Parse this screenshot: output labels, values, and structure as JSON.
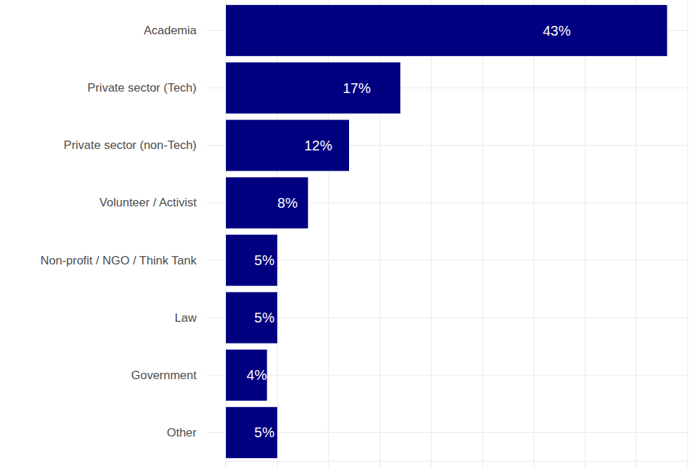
{
  "chart_data": {
    "type": "bar",
    "orientation": "horizontal",
    "categories": [
      "Academia",
      "Private sector (Tech)",
      "Private sector (non-Tech)",
      "Volunteer / Activist",
      "Non-profit / NGO / Think Tank",
      "Law",
      "Government",
      "Other"
    ],
    "values": [
      43,
      17,
      12,
      8,
      5,
      5,
      4,
      5
    ],
    "value_labels": [
      "43%",
      "17%",
      "12%",
      "8%",
      "5%",
      "5%",
      "4%",
      "5%"
    ],
    "color": "#000080",
    "xlim": [
      0,
      45
    ],
    "xticks": [
      0,
      5,
      10,
      15,
      20,
      25,
      30,
      35,
      40,
      45
    ],
    "grid": true,
    "data_labels": true,
    "tick_labels": "y"
  }
}
